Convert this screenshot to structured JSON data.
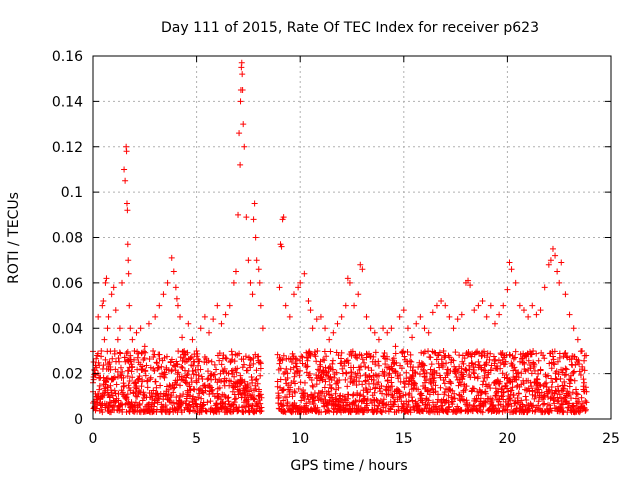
{
  "chart_data": {
    "type": "scatter",
    "title": "Day 111 of 2015, Rate Of TEC Index for receiver p623",
    "xlabel": "GPS time / hours",
    "ylabel": "ROTI / TECUs",
    "xlim": [
      0,
      25
    ],
    "ylim": [
      0,
      0.16
    ],
    "x_ticks": [
      0,
      5,
      10,
      15,
      20,
      25
    ],
    "x_tick_labels": [
      "0",
      "5",
      "10",
      "15",
      "20",
      "25"
    ],
    "y_ticks": [
      0,
      0.02,
      0.04,
      0.06,
      0.08,
      0.1,
      0.12,
      0.14,
      0.16
    ],
    "y_tick_labels": [
      "0",
      "0.02",
      "0.04",
      "0.06",
      "0.08",
      "0.1",
      "0.12",
      "0.14",
      "0.16"
    ],
    "grid": true,
    "marker": "plus",
    "marker_color": "#ff0000",
    "series": [
      {
        "x": [
          0.0,
          0.1,
          0.2,
          0.25,
          0.3,
          0.4,
          0.45,
          0.5,
          0.55,
          0.6,
          0.65,
          0.7,
          0.75,
          0.8,
          0.9,
          1.0,
          1.05,
          1.1,
          1.2,
          1.3,
          1.4,
          1.5,
          1.55,
          1.6,
          1.62,
          1.64,
          1.66,
          1.68,
          1.7,
          1.72,
          1.75,
          1.8,
          1.9,
          2.0,
          2.1,
          2.2,
          2.3,
          2.5,
          2.7,
          2.9,
          3.0,
          3.2,
          3.4,
          3.6,
          3.8,
          3.9,
          4.0,
          4.05,
          4.1,
          4.2,
          4.3,
          4.4,
          4.6,
          4.8,
          5.0,
          5.2,
          5.4,
          5.6,
          5.8,
          6.0,
          6.2,
          6.4,
          6.6,
          6.8,
          6.9,
          7.0,
          7.05,
          7.1,
          7.12,
          7.14,
          7.16,
          7.18,
          7.2,
          7.22,
          7.25,
          7.3,
          7.4,
          7.5,
          7.6,
          7.7,
          7.75,
          7.8,
          7.85,
          7.9,
          8.0,
          8.05,
          8.1,
          8.2,
          9.0,
          9.05,
          9.1,
          9.15,
          9.2,
          9.3,
          9.5,
          9.7,
          9.9,
          10.0,
          10.2,
          10.4,
          10.5,
          10.6,
          10.8,
          11.0,
          11.2,
          11.4,
          11.6,
          11.8,
          12.0,
          12.2,
          12.3,
          12.4,
          12.6,
          12.8,
          12.9,
          13.0,
          13.2,
          13.4,
          13.6,
          13.8,
          14.0,
          14.2,
          14.4,
          14.6,
          14.8,
          15.0,
          15.2,
          15.4,
          15.6,
          15.8,
          16.0,
          16.2,
          16.4,
          16.6,
          16.8,
          17.0,
          17.2,
          17.4,
          17.6,
          17.8,
          18.0,
          18.1,
          18.2,
          18.4,
          18.6,
          18.8,
          19.0,
          19.2,
          19.4,
          19.6,
          19.8,
          20.0,
          20.1,
          20.2,
          20.4,
          20.6,
          20.8,
          21.0,
          21.2,
          21.4,
          21.6,
          21.8,
          22.0,
          22.1,
          22.2,
          22.3,
          22.4,
          22.5,
          22.6,
          22.8,
          23.0,
          23.2,
          23.4,
          23.6,
          23.8
        ],
        "y": [
          0.012,
          0.02,
          0.028,
          0.045,
          0.018,
          0.03,
          0.05,
          0.052,
          0.035,
          0.06,
          0.062,
          0.04,
          0.045,
          0.025,
          0.055,
          0.058,
          0.03,
          0.048,
          0.035,
          0.04,
          0.06,
          0.11,
          0.105,
          0.12,
          0.118,
          0.095,
          0.092,
          0.077,
          0.07,
          0.064,
          0.05,
          0.04,
          0.035,
          0.03,
          0.038,
          0.025,
          0.04,
          0.032,
          0.042,
          0.03,
          0.045,
          0.05,
          0.055,
          0.06,
          0.071,
          0.065,
          0.058,
          0.053,
          0.05,
          0.045,
          0.036,
          0.03,
          0.042,
          0.035,
          0.03,
          0.04,
          0.045,
          0.038,
          0.044,
          0.05,
          0.042,
          0.046,
          0.05,
          0.06,
          0.065,
          0.09,
          0.126,
          0.112,
          0.14,
          0.145,
          0.155,
          0.157,
          0.152,
          0.145,
          0.13,
          0.12,
          0.089,
          0.07,
          0.06,
          0.055,
          0.088,
          0.095,
          0.08,
          0.07,
          0.066,
          0.06,
          0.05,
          0.04,
          0.058,
          0.077,
          0.076,
          0.088,
          0.089,
          0.05,
          0.045,
          0.055,
          0.058,
          0.06,
          0.064,
          0.052,
          0.048,
          0.04,
          0.044,
          0.045,
          0.04,
          0.035,
          0.038,
          0.042,
          0.045,
          0.05,
          0.062,
          0.06,
          0.05,
          0.055,
          0.068,
          0.066,
          0.045,
          0.04,
          0.038,
          0.035,
          0.04,
          0.038,
          0.04,
          0.032,
          0.045,
          0.048,
          0.04,
          0.036,
          0.042,
          0.045,
          0.04,
          0.038,
          0.047,
          0.05,
          0.052,
          0.05,
          0.045,
          0.04,
          0.044,
          0.046,
          0.06,
          0.061,
          0.059,
          0.048,
          0.05,
          0.052,
          0.045,
          0.05,
          0.042,
          0.046,
          0.05,
          0.057,
          0.069,
          0.066,
          0.06,
          0.05,
          0.048,
          0.045,
          0.05,
          0.046,
          0.048,
          0.058,
          0.068,
          0.07,
          0.075,
          0.072,
          0.065,
          0.06,
          0.069,
          0.055,
          0.046,
          0.04,
          0.035,
          0.03,
          0.028
        ],
        "baseline_band": [
          0.003,
          0.03
        ],
        "baseline_gaps": [
          [
            8.15,
            8.9
          ]
        ]
      }
    ]
  }
}
